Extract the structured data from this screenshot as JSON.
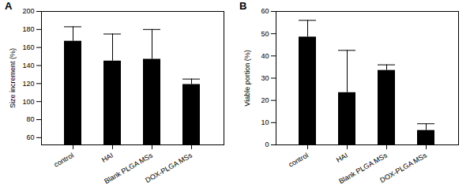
{
  "chart_data": [
    {
      "type": "bar",
      "title": "A",
      "y_label": "Size increment (%)",
      "categories": [
        "control",
        "HAI",
        "Blank PLGA MSs",
        "DOX-PLGA MSs"
      ],
      "values": [
        167,
        145,
        147,
        119
      ],
      "errors": [
        16,
        30,
        33,
        6
      ],
      "color": "#000000",
      "ylim": [
        52,
        200
      ],
      "yticks": [
        60,
        80,
        100,
        120,
        140,
        160,
        180,
        200
      ]
    },
    {
      "type": "bar",
      "title": "B",
      "y_label": "Viable portion (%)",
      "categories": [
        "control",
        "HAI",
        "Blank PLGA MSs",
        "DOX-PLGA MSs"
      ],
      "values": [
        48.5,
        23.5,
        33.5,
        6.5
      ],
      "errors": [
        7.5,
        19,
        2.5,
        3
      ],
      "color": "#000000",
      "ylim": [
        0,
        60
      ],
      "yticks": [
        0,
        10,
        20,
        30,
        40,
        50,
        60
      ]
    }
  ]
}
